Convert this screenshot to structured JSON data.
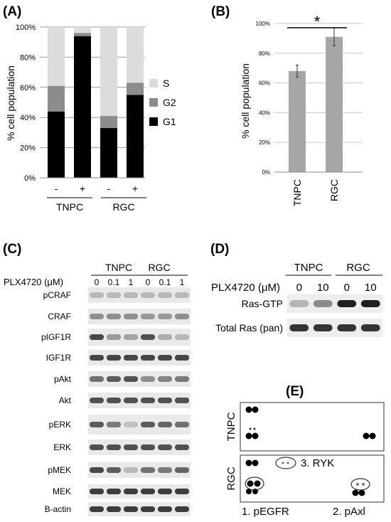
{
  "panels": {
    "a": "(A)",
    "b": "(B)",
    "c": "(C)",
    "d": "(D)",
    "e": "(E)"
  },
  "chart_data": [
    {
      "type": "bar",
      "stacked": true,
      "ylabel": "% cell population",
      "ylim": [
        0,
        100
      ],
      "yticks": [
        "0%",
        "20%",
        "40%",
        "60%",
        "80%",
        "100%"
      ],
      "categories": [
        "-",
        "+",
        "-",
        "+"
      ],
      "groups": [
        "TNPC",
        "RGC"
      ],
      "series": [
        {
          "name": "G1",
          "values": [
            44,
            94,
            33,
            55
          ],
          "color": "#000000"
        },
        {
          "name": "G2",
          "values": [
            17,
            2,
            8,
            8
          ],
          "color": "#8c8c8c"
        },
        {
          "name": "S",
          "values": [
            39,
            4,
            59,
            37
          ],
          "color": "#dcdcdc"
        }
      ],
      "legend": "right"
    },
    {
      "type": "bar",
      "ylabel": "% cell population",
      "ylim": [
        0,
        100
      ],
      "yticks": [
        "0%",
        "20%",
        "40%",
        "60%",
        "80%",
        "100%"
      ],
      "categories": [
        "TNPC",
        "RGC"
      ],
      "values": [
        68,
        91
      ],
      "errors": [
        4,
        6
      ],
      "color": "#a6a6a6",
      "annotation": "*"
    }
  ],
  "blot_c": {
    "groups": [
      "TNPC",
      "RGC"
    ],
    "treatment_label": "PLX4720 (μM)",
    "doses": [
      "0",
      "0.1",
      "1",
      "0",
      "0.1",
      "1"
    ],
    "rows": [
      {
        "label": "pCRAF",
        "intensity": [
          0.25,
          0.25,
          0.25,
          0.25,
          0.25,
          0.25
        ]
      },
      {
        "label": "CRAF",
        "intensity": [
          0.45,
          0.45,
          0.45,
          0.4,
          0.4,
          0.45
        ]
      },
      {
        "label": "pIGF1R",
        "intensity": [
          0.8,
          0.4,
          0.35,
          0.75,
          0.3,
          0.25
        ]
      },
      {
        "label": "IGF1R",
        "intensity": [
          0.8,
          0.8,
          0.8,
          0.8,
          0.8,
          0.8
        ]
      },
      {
        "label": "pAkt",
        "intensity": [
          0.6,
          0.7,
          0.75,
          0.45,
          0.5,
          0.55
        ]
      },
      {
        "label": "Akt",
        "intensity": [
          0.75,
          0.75,
          0.75,
          0.75,
          0.75,
          0.75
        ]
      },
      {
        "label": "pERK",
        "intensity": [
          0.7,
          0.55,
          0.2,
          0.7,
          0.65,
          0.6
        ]
      },
      {
        "label": "ERK",
        "intensity": [
          0.75,
          0.75,
          0.75,
          0.75,
          0.75,
          0.75
        ]
      },
      {
        "label": "pMEK",
        "intensity": [
          0.8,
          0.7,
          0.25,
          0.6,
          0.55,
          0.65
        ]
      },
      {
        "label": "MEK",
        "intensity": [
          0.85,
          0.85,
          0.85,
          0.85,
          0.85,
          0.85
        ]
      },
      {
        "label": "B-actin",
        "intensity": [
          0.85,
          0.85,
          0.85,
          0.85,
          0.85,
          0.85
        ]
      }
    ]
  },
  "blot_d": {
    "groups": [
      "TNPC",
      "RGC"
    ],
    "treatment_label": "PLX4720 (μM)",
    "doses": [
      "0",
      "10",
      "0",
      "10"
    ],
    "rows": [
      {
        "label": "Ras-GTP",
        "intensity": [
          0.25,
          0.45,
          0.95,
          0.95
        ]
      },
      {
        "label": "Total Ras (pan)",
        "intensity": [
          0.85,
          0.85,
          0.85,
          0.85
        ]
      }
    ]
  },
  "array_e": {
    "rows": [
      {
        "label": "TNPC"
      },
      {
        "label": "RGC"
      }
    ],
    "annotations": [
      "1. pEGFR",
      "2. pAxl",
      "3. RYK"
    ]
  }
}
